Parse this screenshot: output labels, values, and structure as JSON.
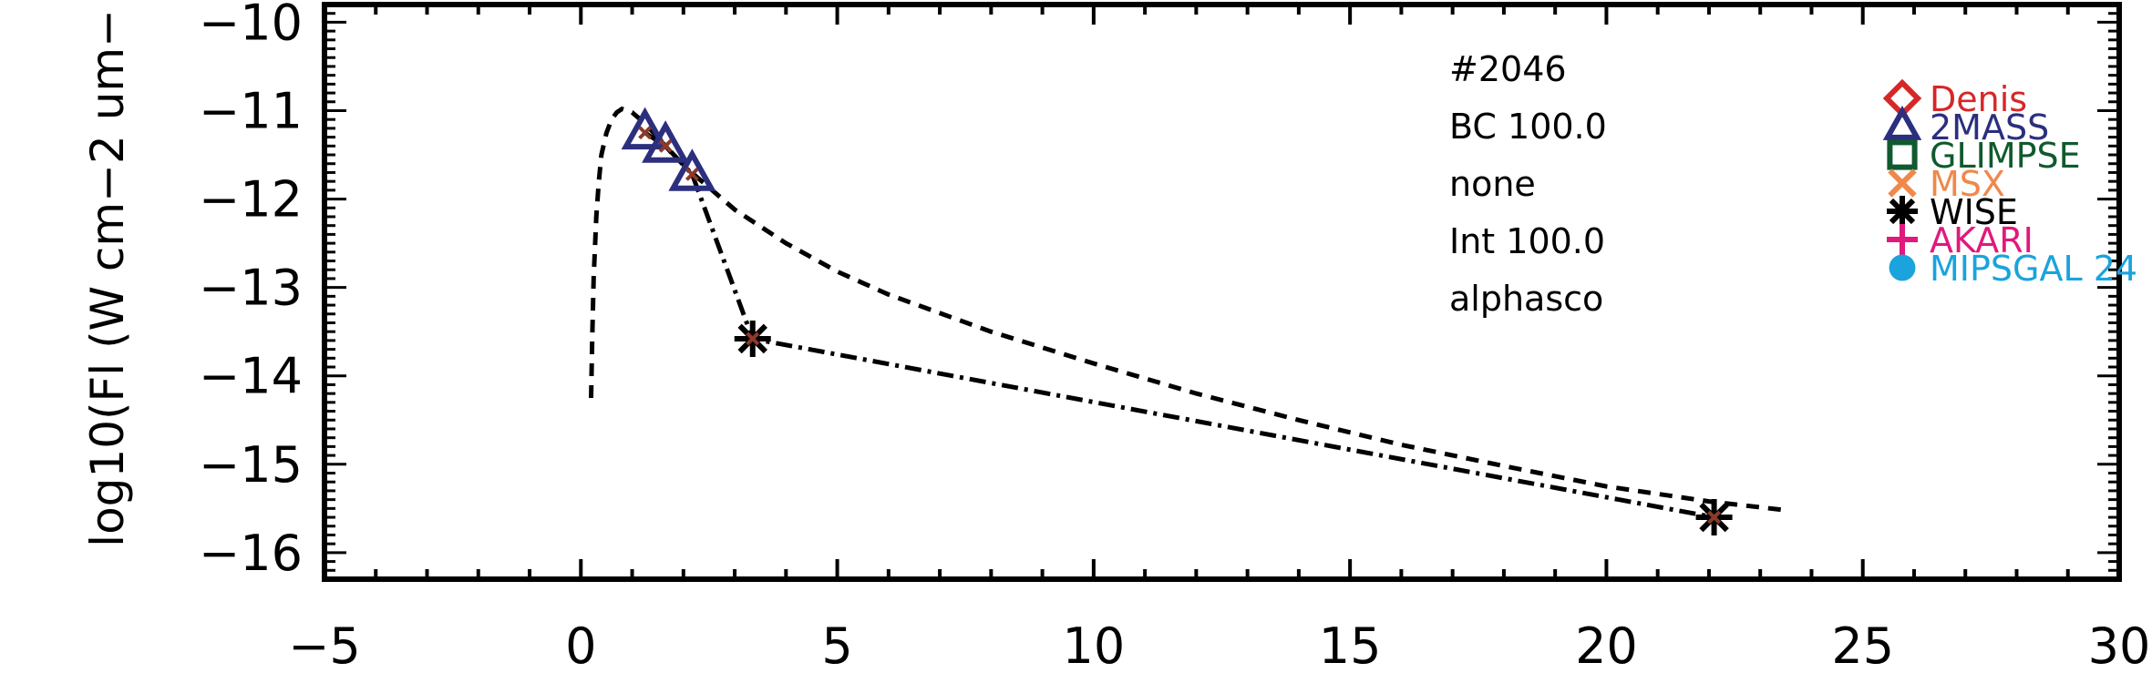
{
  "chart_data": {
    "type": "scatter",
    "title": "",
    "xlabel": "",
    "ylabel": "log10(Fl (W cm−2 um−",
    "xlim": [
      -5,
      30
    ],
    "ylim": [
      -16.3,
      -9.8
    ],
    "x_ticks": [
      -5,
      0,
      5,
      10,
      15,
      20,
      25,
      30
    ],
    "x_tick_labels": [
      "−5",
      "0",
      "5",
      "10",
      "15",
      "20",
      "25",
      "30"
    ],
    "y_ticks": [
      -16,
      -15,
      -14,
      -13,
      -12,
      -11,
      -10
    ],
    "y_tick_labels": [
      "−16",
      "−15",
      "−14",
      "−13",
      "−12",
      "−11",
      "−10"
    ],
    "grid": false,
    "annotations": [
      "#2046",
      "BC 100.0",
      "none",
      "Int 100.0",
      "alphasco"
    ],
    "legend": {
      "placement": "top-right",
      "entries": [
        {
          "label": "Denis",
          "marker": "diamond",
          "color": "#d62728"
        },
        {
          "label": "2MASS",
          "marker": "triangle",
          "color": "#2b2f7e"
        },
        {
          "label": "GLIMPSE",
          "marker": "square",
          "color": "#0f5a2e"
        },
        {
          "label": "MSX",
          "marker": "x",
          "color": "#f0884a"
        },
        {
          "label": "WISE",
          "marker": "asterisk",
          "color": "#000000"
        },
        {
          "label": "AKARI",
          "marker": "plus",
          "color": "#e0197d"
        },
        {
          "label": "MIPSGAL 24",
          "marker": "circle",
          "color": "#1aa3dc"
        }
      ]
    },
    "series": [
      {
        "style": "dashed",
        "x": [
          0.2,
          0.22,
          0.25,
          0.3,
          0.35,
          0.4,
          0.5,
          0.6,
          0.7,
          0.8,
          1.0,
          1.2,
          1.5,
          1.8,
          2.2,
          2.6,
          3.0,
          4.0,
          5.0,
          6.0,
          8.0,
          10.0,
          12.0,
          14.0,
          16.0,
          18.0,
          20.0,
          22.0,
          23.5
        ],
        "y": [
          -14.25,
          -13.6,
          -12.9,
          -12.2,
          -11.8,
          -11.5,
          -11.25,
          -11.1,
          -11.02,
          -10.98,
          -11.02,
          -11.12,
          -11.3,
          -11.5,
          -11.72,
          -11.92,
          -12.12,
          -12.5,
          -12.82,
          -13.08,
          -13.5,
          -13.86,
          -14.2,
          -14.5,
          -14.78,
          -15.02,
          -15.25,
          -15.42,
          -15.52
        ]
      },
      {
        "style": "dash-dot",
        "x": [
          1.25,
          1.65,
          2.17,
          3.35,
          22.1
        ],
        "y": [
          -11.25,
          -11.4,
          -11.72,
          -13.58,
          -15.6
        ]
      }
    ],
    "points": [
      {
        "survey": "2MASS",
        "marker": "triangle",
        "color": "#2b2f7e",
        "x": 1.25,
        "y": -11.25
      },
      {
        "survey": "2MASS",
        "marker": "triangle",
        "color": "#2b2f7e",
        "x": 1.65,
        "y": -11.4
      },
      {
        "survey": "2MASS",
        "marker": "triangle",
        "color": "#2b2f7e",
        "x": 2.17,
        "y": -11.72
      },
      {
        "survey": "WISE",
        "marker": "asterisk",
        "color": "#000000",
        "x": 3.35,
        "y": -13.58
      },
      {
        "survey": "WISE",
        "marker": "asterisk",
        "color": "#000000",
        "x": 22.1,
        "y": -15.6
      }
    ],
    "point_center_color": "#8b3a2a"
  }
}
